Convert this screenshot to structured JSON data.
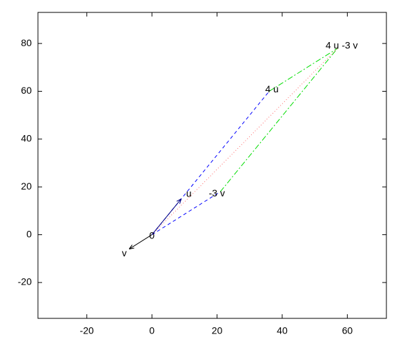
{
  "chart_data": {
    "type": "vector",
    "xlim": [
      -35,
      72
    ],
    "ylim": [
      -35,
      93
    ],
    "xticks": [
      -20,
      0,
      20,
      40,
      60
    ],
    "yticks": [
      -20,
      0,
      20,
      40,
      60,
      80
    ],
    "points": [
      {
        "label": "0",
        "x": 0,
        "y": 0
      },
      {
        "label": "u",
        "x": 9,
        "y": 15
      },
      {
        "label": "v",
        "x": -7,
        "y": -6
      },
      {
        "label": "4 u",
        "x": 36,
        "y": 60
      },
      {
        "label": "-3 v",
        "x": 21,
        "y": 18
      },
      {
        "label": "4 u -3 v",
        "x": 57,
        "y": 78
      }
    ],
    "segments": [
      {
        "from": "0",
        "to": "4 u",
        "color": "#0000ff",
        "dash": "dashed"
      },
      {
        "from": "0",
        "to": "-3 v",
        "color": "#0000ff",
        "dash": "dashed"
      },
      {
        "from": "4 u",
        "to": "4 u -3 v",
        "color": "#00dd00",
        "dash": "dashdot"
      },
      {
        "from": "-3 v",
        "to": "4 u -3 v",
        "color": "#00dd00",
        "dash": "dashdot"
      },
      {
        "from": "0",
        "to": "4 u -3 v",
        "color": "#ff6666",
        "dash": "dotted"
      },
      {
        "from": "0",
        "to": "u",
        "color": "#000080",
        "dash": "solid",
        "arrow": true
      },
      {
        "from": "0",
        "to": "v",
        "color": "#000000",
        "dash": "solid",
        "arrow": true
      }
    ]
  }
}
